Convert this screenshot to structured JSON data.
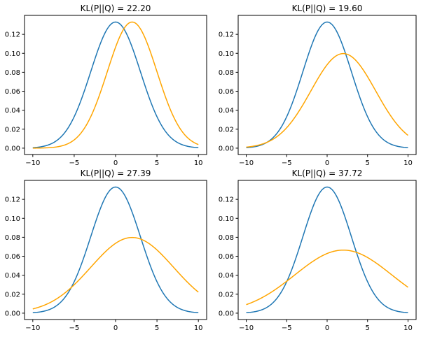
{
  "chart_data": [
    {
      "type": "line",
      "title": "KL(P||Q) = 22.20",
      "xlabel": "",
      "ylabel": "",
      "xlim": [
        -10,
        10
      ],
      "ylim": [
        -0.0067,
        0.14
      ],
      "xticks": [
        -10,
        -5,
        0,
        5,
        10
      ],
      "xtick_labels": [
        "−10",
        "−5",
        "0",
        "5",
        "10"
      ],
      "yticks": [
        0.0,
        0.02,
        0.04,
        0.06,
        0.08,
        0.1,
        0.12
      ],
      "ytick_labels": [
        "0.00",
        "0.02",
        "0.04",
        "0.06",
        "0.08",
        "0.10",
        "0.12"
      ],
      "grid": false,
      "series": [
        {
          "color": "#1f77b4",
          "mean": 0,
          "std": 3,
          "x": [
            -10,
            -5,
            0,
            5,
            10
          ],
          "y": [
            0.0005,
            0.0332,
            0.133,
            0.0332,
            0.0005
          ]
        },
        {
          "color": "#ffa500",
          "mean": 2,
          "std": 3,
          "x": [
            -10,
            -5,
            0,
            2,
            5,
            10
          ],
          "y": [
            0.0,
            0.0087,
            0.1065,
            0.133,
            0.0807,
            0.004
          ]
        }
      ]
    },
    {
      "type": "line",
      "title": "KL(P||Q) = 19.60",
      "xlabel": "",
      "ylabel": "",
      "xlim": [
        -10,
        10
      ],
      "ylim": [
        -0.0067,
        0.14
      ],
      "xticks": [
        -10,
        -5,
        0,
        5,
        10
      ],
      "xtick_labels": [
        "−10",
        "−5",
        "0",
        "5",
        "10"
      ],
      "yticks": [
        0.0,
        0.02,
        0.04,
        0.06,
        0.08,
        0.1,
        0.12
      ],
      "ytick_labels": [
        "0.00",
        "0.02",
        "0.04",
        "0.06",
        "0.08",
        "0.10",
        "0.12"
      ],
      "grid": false,
      "series": [
        {
          "color": "#1f77b4",
          "mean": 0,
          "std": 3,
          "x": [
            -10,
            -5,
            0,
            5,
            10
          ],
          "y": [
            0.0005,
            0.0332,
            0.133,
            0.0332,
            0.0005
          ]
        },
        {
          "color": "#ffa500",
          "mean": 2,
          "std": 4,
          "x": [
            -10,
            -5,
            0,
            2,
            5,
            10
          ],
          "y": [
            0.0011,
            0.0216,
            0.088,
            0.0997,
            0.0754,
            0.0135
          ]
        }
      ]
    },
    {
      "type": "line",
      "title": "KL(P||Q) = 27.39",
      "xlabel": "",
      "ylabel": "",
      "xlim": [
        -10,
        10
      ],
      "ylim": [
        -0.0067,
        0.14
      ],
      "xticks": [
        -10,
        -5,
        0,
        5,
        10
      ],
      "xtick_labels": [
        "−10",
        "−5",
        "0",
        "5",
        "10"
      ],
      "yticks": [
        0.0,
        0.02,
        0.04,
        0.06,
        0.08,
        0.1,
        0.12
      ],
      "ytick_labels": [
        "0.00",
        "0.02",
        "0.04",
        "0.06",
        "0.08",
        "0.10",
        "0.12"
      ],
      "grid": false,
      "series": [
        {
          "color": "#1f77b4",
          "mean": 0,
          "std": 3,
          "x": [
            -10,
            -5,
            0,
            5,
            10
          ],
          "y": [
            0.0005,
            0.0332,
            0.133,
            0.0332,
            0.0005
          ]
        },
        {
          "color": "#ffa500",
          "mean": 2,
          "std": 5,
          "x": [
            -10,
            -5,
            0,
            2,
            5,
            10
          ],
          "y": [
            0.0045,
            0.03,
            0.0737,
            0.0798,
            0.067,
            0.0222
          ]
        }
      ]
    },
    {
      "type": "line",
      "title": "KL(P||Q) = 37.72",
      "xlabel": "",
      "ylabel": "",
      "xlim": [
        -10,
        10
      ],
      "ylim": [
        -0.0067,
        0.14
      ],
      "xticks": [
        -10,
        -5,
        0,
        5,
        10
      ],
      "xtick_labels": [
        "−10",
        "−5",
        "0",
        "5",
        "10"
      ],
      "yticks": [
        0.0,
        0.02,
        0.04,
        0.06,
        0.08,
        0.1,
        0.12
      ],
      "ytick_labels": [
        "0.00",
        "0.02",
        "0.04",
        "0.06",
        "0.08",
        "0.10",
        "0.12"
      ],
      "grid": false,
      "series": [
        {
          "color": "#1f77b4",
          "mean": 0,
          "std": 3,
          "x": [
            -10,
            -5,
            0,
            5,
            10
          ],
          "y": [
            0.0005,
            0.0332,
            0.133,
            0.0332,
            0.0005
          ]
        },
        {
          "color": "#ffa500",
          "mean": 2,
          "std": 6,
          "x": [
            -10,
            -5,
            0,
            2,
            5,
            10
          ],
          "y": [
            0.0091,
            0.0337,
            0.0629,
            0.0665,
            0.0585,
            0.0274
          ]
        }
      ]
    }
  ]
}
